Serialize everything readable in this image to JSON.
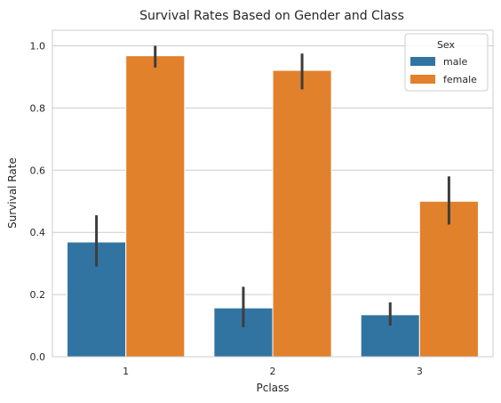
{
  "chart_data": {
    "type": "bar",
    "title": "Survival Rates Based on Gender and Class",
    "xlabel": "Pclass",
    "ylabel": "Survival Rate",
    "categories": [
      "1",
      "2",
      "3"
    ],
    "ylim": [
      0,
      1.05
    ],
    "yticks": [
      "0.0",
      "0.2",
      "0.4",
      "0.6",
      "0.8",
      "1.0"
    ],
    "grid": "horizontal",
    "legend": {
      "title": "Sex",
      "placement": "top-right"
    },
    "series": [
      {
        "name": "male",
        "color": "#3274a1",
        "values": [
          0.369,
          0.157,
          0.135
        ],
        "ci_low": [
          0.29,
          0.095,
          0.1
        ],
        "ci_high": [
          0.455,
          0.225,
          0.175
        ]
      },
      {
        "name": "female",
        "color": "#e1812c",
        "values": [
          0.968,
          0.921,
          0.5
        ],
        "ci_low": [
          0.93,
          0.86,
          0.425
        ],
        "ci_high": [
          1.0,
          0.975,
          0.58
        ]
      }
    ],
    "errorbar_color": "#3d3d3d"
  }
}
